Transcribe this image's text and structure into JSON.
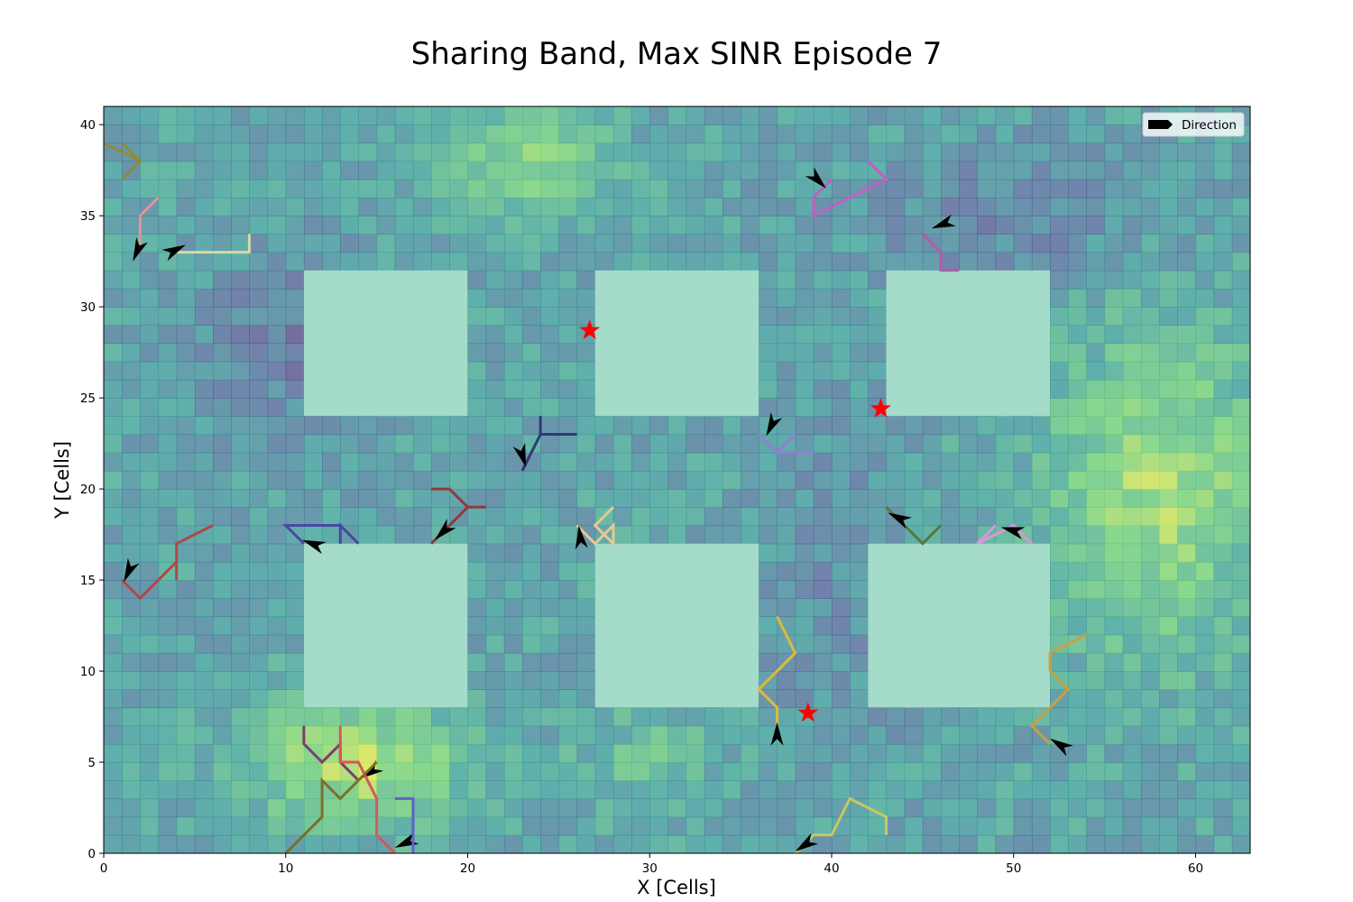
{
  "chart_data": {
    "type": "heatmap",
    "title": "Sharing Band, Max SINR Episode 7",
    "xlabel": "X [Cells]",
    "ylabel": "Y [Cells]",
    "xlim": [
      0,
      63
    ],
    "ylim": [
      0,
      41
    ],
    "xticks": [
      0,
      10,
      20,
      30,
      40,
      50,
      60
    ],
    "yticks": [
      0,
      5,
      10,
      15,
      20,
      25,
      30,
      35,
      40
    ],
    "grid": false,
    "legend": {
      "placement": "top-right",
      "entries": [
        {
          "label": "Direction",
          "color": "#000000"
        }
      ]
    },
    "colormap": "viridis",
    "buildings": [
      {
        "x0": 11,
        "x1": 20,
        "y0": 24,
        "y1": 32
      },
      {
        "x0": 27,
        "x1": 36,
        "y0": 24,
        "y1": 32
      },
      {
        "x0": 43,
        "x1": 52,
        "y0": 24,
        "y1": 32
      },
      {
        "x0": 11,
        "x1": 20,
        "y0": 8,
        "y1": 17
      },
      {
        "x0": 27,
        "x1": 36,
        "y0": 8,
        "y1": 17
      },
      {
        "x0": 42,
        "x1": 52,
        "y0": 8,
        "y1": 17
      }
    ],
    "base_stations": [
      {
        "x": 26.7,
        "y": 28.7
      },
      {
        "x": 42.7,
        "y": 24.4
      },
      {
        "x": 38.7,
        "y": 7.7
      }
    ],
    "trajectories": [
      {
        "color": "#8c8c3c",
        "points": [
          [
            0,
            39
          ],
          [
            2,
            38
          ],
          [
            1,
            37
          ],
          [
            2,
            38
          ],
          [
            1,
            39
          ]
        ]
      },
      {
        "color": "#e8909c",
        "points": [
          [
            3,
            36
          ],
          [
            2,
            35
          ],
          [
            2,
            33
          ],
          [
            2,
            35
          ],
          [
            3,
            36
          ]
        ],
        "arrow": [
          1.6,
          32.5,
          -0.6,
          -1.4
        ]
      },
      {
        "color": "#d8d8a0",
        "points": [
          [
            8,
            34
          ],
          [
            8,
            33
          ],
          [
            4,
            33
          ]
        ],
        "arrow": [
          4.5,
          33.4,
          0.6,
          0.3
        ]
      },
      {
        "color": "#c060c0",
        "points": [
          [
            42,
            38
          ],
          [
            43,
            37
          ],
          [
            39,
            35
          ],
          [
            39,
            36
          ],
          [
            40,
            37
          ]
        ],
        "arrow": [
          39.7,
          36.5,
          0.5,
          -0.5
        ]
      },
      {
        "color": "#b05ca8",
        "points": [
          [
            47,
            32
          ],
          [
            46,
            32
          ],
          [
            46,
            33
          ],
          [
            45,
            34
          ]
        ],
        "arrow": [
          45.5,
          34.3,
          -0.8,
          -0.3
        ]
      },
      {
        "color": "#303878",
        "points": [
          [
            26,
            23
          ],
          [
            24,
            23
          ],
          [
            24,
            24
          ],
          [
            24,
            23
          ],
          [
            23,
            21
          ]
        ],
        "arrow": [
          23.2,
          21.2,
          0.4,
          -1.3
        ]
      },
      {
        "color": "#9080d0",
        "points": [
          [
            39,
            22
          ],
          [
            37,
            22
          ],
          [
            38,
            23
          ],
          [
            37,
            22
          ],
          [
            36,
            23
          ]
        ],
        "arrow": [
          36.4,
          22.9,
          -0.6,
          -1.2
        ]
      },
      {
        "color": "#8c3c3c",
        "points": [
          [
            18,
            20
          ],
          [
            19,
            20
          ],
          [
            20,
            19
          ],
          [
            21,
            19
          ],
          [
            20,
            19
          ],
          [
            18,
            17
          ]
        ],
        "arrow": [
          18.2,
          17.2,
          -0.3,
          -0.3
        ]
      },
      {
        "color": "#4848a0",
        "points": [
          [
            14,
            17
          ],
          [
            13,
            18
          ],
          [
            13,
            17
          ],
          [
            13,
            18
          ],
          [
            10,
            18
          ],
          [
            11,
            17
          ]
        ],
        "arrow": [
          10.9,
          17.2,
          -1.1,
          0.4
        ]
      },
      {
        "color": "#e8c890",
        "points": [
          [
            28,
            19
          ],
          [
            27,
            18
          ],
          [
            28,
            17
          ],
          [
            28,
            18
          ],
          [
            27,
            17
          ],
          [
            26,
            18
          ]
        ],
        "arrow": [
          26.1,
          18.0,
          -0.1,
          0.8
        ]
      },
      {
        "color": "#5a7838",
        "points": [
          [
            46,
            18
          ],
          [
            45,
            17
          ],
          [
            44,
            18
          ],
          [
            43,
            19
          ]
        ],
        "arrow": [
          43.1,
          18.7,
          -0.8,
          0.4
        ]
      },
      {
        "color": "#d898d8",
        "points": [
          [
            51,
            17
          ],
          [
            50,
            18
          ],
          [
            48,
            17
          ],
          [
            49,
            18
          ]
        ],
        "arrow": [
          49.3,
          17.9,
          -1.5,
          0.4
        ]
      },
      {
        "color": "#b04848",
        "points": [
          [
            6,
            18
          ],
          [
            4,
            17
          ],
          [
            4,
            15
          ],
          [
            4,
            16
          ],
          [
            2,
            14
          ],
          [
            1,
            15
          ]
        ],
        "arrow": [
          1.1,
          14.9,
          -0.7,
          -1.5
        ]
      },
      {
        "color": "#e0b840",
        "points": [
          [
            37,
            13
          ],
          [
            38,
            11
          ],
          [
            36,
            9
          ],
          [
            37,
            8
          ],
          [
            37,
            7
          ]
        ],
        "arrow": [
          37.0,
          7.2,
          0.0,
          0.6
        ]
      },
      {
        "color": "#c8a040",
        "points": [
          [
            54,
            12
          ],
          [
            52,
            11
          ],
          [
            52,
            10
          ],
          [
            53,
            9
          ],
          [
            51,
            7
          ],
          [
            52,
            6
          ]
        ],
        "arrow": [
          52.0,
          6.3,
          -0.8,
          0.5
        ]
      },
      {
        "color": "#803c70",
        "points": [
          [
            11,
            7
          ],
          [
            11,
            6
          ],
          [
            12,
            5
          ],
          [
            13,
            6
          ],
          [
            13,
            5
          ],
          [
            14,
            4
          ]
        ],
        "arrow": [
          14.1,
          4.1,
          -0.3,
          -0.2
        ]
      },
      {
        "color": "#d85858",
        "points": [
          [
            13,
            7
          ],
          [
            13,
            5
          ],
          [
            14,
            5
          ],
          [
            15,
            3
          ],
          [
            15,
            1
          ],
          [
            16,
            0
          ]
        ],
        "arrow": [
          16.0,
          0.3,
          -0.9,
          -0.4
        ]
      },
      {
        "color": "#7a7028",
        "points": [
          [
            15,
            5
          ],
          [
            14,
            4
          ],
          [
            13,
            3
          ],
          [
            12,
            4
          ],
          [
            12,
            2
          ],
          [
            10,
            0
          ]
        ],
        "arrow": [
          9.0,
          0.0,
          0.0,
          0.9
        ]
      },
      {
        "color": "#6060c8",
        "points": [
          [
            16,
            3
          ],
          [
            17,
            3
          ],
          [
            17,
            1
          ],
          [
            17,
            0
          ]
        ]
      },
      {
        "color": "#c8c860",
        "points": [
          [
            43,
            1
          ],
          [
            43,
            2
          ],
          [
            41,
            3
          ],
          [
            40,
            1
          ],
          [
            39,
            1
          ],
          [
            38,
            0
          ]
        ],
        "arrow": [
          38.0,
          0.1,
          -0.3,
          -0.2
        ]
      }
    ]
  }
}
